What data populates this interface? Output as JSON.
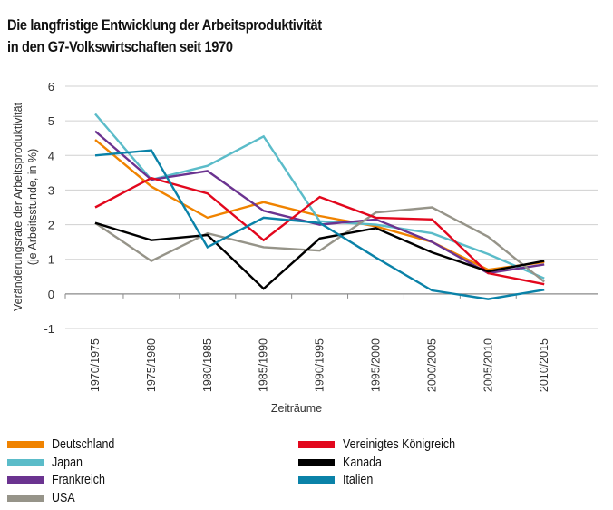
{
  "chart_data": {
    "type": "line",
    "title": "Die langfristige Entwicklung der Arbeitsproduktivität in den G7-Volkswirtschaften seit 1970",
    "title_lines": [
      "Die langfristige Entwicklung der Arbeitsproduktivität",
      "in den G7-Volkswirtschaften seit 1970"
    ],
    "xlabel": "Zeiträume",
    "ylabel_lines": [
      "Veränderungsrate der Arbeitsproduktivität",
      "(je Arbeitsstunde, in %)"
    ],
    "ylim": [
      -1,
      6
    ],
    "yticks": [
      -1,
      0,
      1,
      2,
      3,
      4,
      5,
      6
    ],
    "grid": true,
    "legend_position": "bottom",
    "categories": [
      "1970/1975",
      "1975/1980",
      "1980/1985",
      "1985/1990",
      "1990/1995",
      "1995/2000",
      "2000/2005",
      "2005/2010",
      "2010/2015"
    ],
    "series": [
      {
        "name": "Deutschland",
        "color": "#F08300",
        "values": [
          4.45,
          3.1,
          2.2,
          2.65,
          2.25,
          1.95,
          1.5,
          0.7,
          0.92
        ]
      },
      {
        "name": "Japan",
        "color": "#5BBCC9",
        "values": [
          5.2,
          3.3,
          3.7,
          4.55,
          2.1,
          2.0,
          1.75,
          1.15,
          0.45
        ]
      },
      {
        "name": "Frankreich",
        "color": "#6B3390",
        "values": [
          4.7,
          3.3,
          3.55,
          2.4,
          2.0,
          2.15,
          1.5,
          0.6,
          0.85
        ]
      },
      {
        "name": "USA",
        "color": "#969489",
        "values": [
          2.05,
          0.95,
          1.75,
          1.35,
          1.25,
          2.35,
          2.5,
          1.65,
          0.35
        ]
      },
      {
        "name": "Vereinigtes Königreich",
        "color": "#E2071D",
        "values": [
          2.5,
          3.35,
          2.9,
          1.55,
          2.8,
          2.2,
          2.15,
          0.6,
          0.28
        ]
      },
      {
        "name": "Kanada",
        "color": "#000000",
        "values": [
          2.05,
          1.55,
          1.7,
          0.15,
          1.6,
          1.9,
          1.2,
          0.65,
          0.95
        ]
      },
      {
        "name": "Italien",
        "color": "#0A82A8",
        "values": [
          4.0,
          4.15,
          1.35,
          2.2,
          2.05,
          1.05,
          0.1,
          -0.15,
          0.12
        ]
      }
    ],
    "legend_columns": [
      [
        "Deutschland",
        "Japan",
        "Frankreich",
        "USA"
      ],
      [
        "Vereinigtes Königreich",
        "Kanada",
        "Italien"
      ]
    ]
  }
}
